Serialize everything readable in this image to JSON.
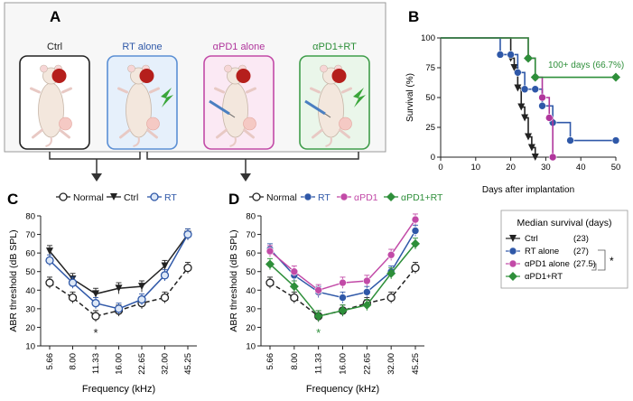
{
  "panels": {
    "a": "A",
    "b": "B",
    "c": "C",
    "d": "D"
  },
  "groups": [
    {
      "label": "Ctrl",
      "color": "#222222",
      "bg": "#ffffff",
      "border": "#222222"
    },
    {
      "label": "RT alone",
      "color": "#2f58a8",
      "bg": "#e6f0fb",
      "border": "#5b8fd4"
    },
    {
      "label": "αPD1 alone",
      "color": "#b0369c",
      "bg": "#fbe9f4",
      "border": "#c24aa7"
    },
    {
      "label": "αPD1+RT",
      "color": "#2e8f3a",
      "bg": "#eaf6ea",
      "border": "#3f9d4a"
    }
  ],
  "median_box": {
    "title": "Median survival (days)",
    "rows": [
      {
        "label": "Ctrl",
        "value": "(23)",
        "color": "#222222",
        "marker": "tri"
      },
      {
        "label": "RT alone",
        "value": "(27)",
        "color": "#2f58a8",
        "marker": "circle"
      },
      {
        "label": "αPD1 alone",
        "value": "(27.5)",
        "color": "#c24aa7",
        "marker": "circle"
      },
      {
        "label": "αPD1+RT",
        "value": "",
        "color": "#2e8f3a",
        "marker": "diamond"
      }
    ],
    "significance": "*"
  },
  "chart_data": [
    {
      "id": "B",
      "type": "line",
      "title": "",
      "xlabel": "Days after implantation",
      "ylabel": "Survival (%)",
      "xlim": [
        0,
        50
      ],
      "ylim": [
        0,
        100
      ],
      "xticks": [
        0,
        10,
        20,
        30,
        40,
        50
      ],
      "yticks": [
        0,
        25,
        50,
        75,
        100
      ],
      "annotation": "100+ days (66.7%)",
      "series": [
        {
          "name": "Ctrl",
          "color": "#222222",
          "marker": "tri",
          "x": [
            0,
            20,
            21,
            22,
            23,
            24,
            25,
            26,
            27
          ],
          "y": [
            100,
            83,
            75,
            58,
            42,
            33,
            17,
            8,
            0
          ]
        },
        {
          "name": "RT alone",
          "color": "#2f58a8",
          "marker": "circle",
          "x": [
            0,
            17,
            20,
            22,
            24,
            27,
            29,
            32,
            37,
            50
          ],
          "y": [
            100,
            86,
            86,
            71,
            57,
            57,
            43,
            29,
            14,
            14
          ]
        },
        {
          "name": "αPD1 alone",
          "color": "#b0369c",
          "marker": "circle",
          "x": [
            0,
            25,
            27,
            29,
            31,
            32
          ],
          "y": [
            100,
            83,
            67,
            50,
            33,
            0
          ]
        },
        {
          "name": "αPD1+RT",
          "color": "#2e8f3a",
          "marker": "diamond",
          "x": [
            0,
            25,
            27,
            50
          ],
          "y": [
            100,
            83,
            67,
            67
          ]
        }
      ]
    },
    {
      "id": "C",
      "type": "line",
      "xlabel": "Frequency (kHz)",
      "ylabel": "ABR threshold (dB SPL)",
      "categories": [
        "5.66",
        "8.00",
        "11.33",
        "16.00",
        "22.65",
        "32.00",
        "45.25"
      ],
      "ylim": [
        10,
        80
      ],
      "yticks": [
        10,
        20,
        30,
        40,
        50,
        60,
        70,
        80
      ],
      "significance": [
        {
          "category": "11.33",
          "mark": "*",
          "color": "#222222"
        }
      ],
      "series": [
        {
          "name": "Normal",
          "color": "#222222",
          "marker": "open-circle",
          "dashed": true,
          "values": [
            44,
            36,
            26,
            29,
            33,
            36,
            52
          ]
        },
        {
          "name": "Ctrl",
          "color": "#222222",
          "marker": "tri",
          "dashed": false,
          "values": [
            61,
            46,
            38,
            41,
            42,
            53,
            70
          ]
        },
        {
          "name": "RT",
          "color": "#2f58a8",
          "marker": "open-circle-blue",
          "dashed": false,
          "values": [
            56,
            44,
            33,
            30,
            35,
            48,
            70
          ]
        }
      ]
    },
    {
      "id": "D",
      "type": "line",
      "xlabel": "Frequency (kHz)",
      "ylabel": "ABR threshold (dB SPL)",
      "categories": [
        "5.66",
        "8.00",
        "11.33",
        "16.00",
        "22.65",
        "32.00",
        "45.25"
      ],
      "ylim": [
        10,
        80
      ],
      "yticks": [
        10,
        20,
        30,
        40,
        50,
        60,
        70,
        80
      ],
      "significance": [
        {
          "category": "11.33",
          "mark": "*",
          "color": "#2e8f3a"
        }
      ],
      "series": [
        {
          "name": "Normal",
          "color": "#222222",
          "marker": "open-circle",
          "dashed": true,
          "values": [
            44,
            36,
            26,
            29,
            33,
            36,
            52
          ]
        },
        {
          "name": "RT",
          "color": "#2f58a8",
          "marker": "circle",
          "dashed": false,
          "values": [
            62,
            48,
            39,
            36,
            39,
            50,
            72
          ]
        },
        {
          "name": "αPD1",
          "color": "#c24aa7",
          "marker": "circle",
          "dashed": false,
          "values": [
            61,
            50,
            40,
            44,
            45,
            59,
            78
          ]
        },
        {
          "name": "αPD1+RT",
          "color": "#2e8f3a",
          "marker": "diamond",
          "dashed": false,
          "values": [
            54,
            42,
            26,
            29,
            32,
            49,
            65
          ]
        }
      ]
    }
  ]
}
